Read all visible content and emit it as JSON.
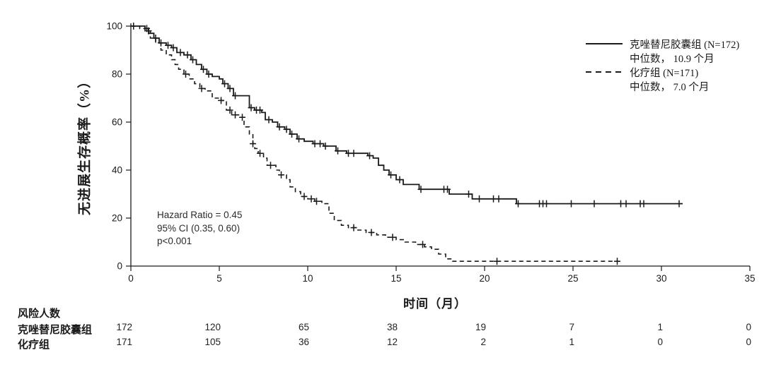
{
  "page": {
    "background": "#ffffff",
    "ink_color": "#1a1a1a"
  },
  "axes": {
    "x_title": "时间（月）",
    "y_title": "无进展生存概率（%）"
  },
  "legend": [
    {
      "label": "克唑替尼胶囊组 (N=172)",
      "median": "中位数， 10.9 个月",
      "style": "solid"
    },
    {
      "label": "化疗组 (N=171)",
      "median": "中位数， 7.0 个月",
      "style": "dashed"
    }
  ],
  "annotation": {
    "line1": "Hazard Ratio = 0.45",
    "line2": "95% CI (0.35, 0.60)",
    "line3": "p<0.001"
  },
  "risk_table": {
    "title": "风险人数",
    "columns_months": [
      0,
      5,
      10,
      15,
      20,
      25,
      30,
      35
    ],
    "rows": [
      {
        "label": "克唑替尼胶囊组",
        "counts": [
          172,
          120,
          65,
          38,
          19,
          7,
          1,
          0
        ]
      },
      {
        "label": "化疗组",
        "counts": [
          171,
          105,
          36,
          12,
          2,
          1,
          0,
          0
        ]
      }
    ]
  },
  "chart_data": {
    "type": "line",
    "subtype": "kaplan-meier-step",
    "title": "",
    "xlabel": "时间（月）",
    "ylabel": "无进展生存概率（%）",
    "xlim": [
      0,
      35
    ],
    "ylim": [
      0,
      100
    ],
    "x_ticks": [
      0,
      5,
      10,
      15,
      20,
      25,
      30,
      35
    ],
    "y_ticks": [
      0,
      20,
      40,
      60,
      80,
      100
    ],
    "grid": false,
    "line_color": "#1a1a1a",
    "annotation_lines": [
      "Hazard Ratio = 0.45",
      "95% CI (0.35, 0.60)",
      "p<0.001"
    ],
    "series": [
      {
        "name": "克唑替尼胶囊组 (N=172)",
        "style": "solid",
        "median_months": 10.9,
        "n": 172,
        "end_month": 31.2,
        "points": [
          [
            0,
            100
          ],
          [
            0.8,
            99
          ],
          [
            1.0,
            97
          ],
          [
            1.3,
            95
          ],
          [
            1.6,
            93
          ],
          [
            2.0,
            92
          ],
          [
            2.3,
            91
          ],
          [
            2.6,
            89
          ],
          [
            3.0,
            88
          ],
          [
            3.4,
            86
          ],
          [
            3.7,
            84
          ],
          [
            4.0,
            82
          ],
          [
            4.3,
            80
          ],
          [
            4.6,
            79
          ],
          [
            5.0,
            78
          ],
          [
            5.2,
            76
          ],
          [
            5.5,
            74
          ],
          [
            5.8,
            71
          ],
          [
            6.7,
            66
          ],
          [
            7.0,
            65
          ],
          [
            7.4,
            64
          ],
          [
            7.6,
            61
          ],
          [
            8.0,
            60
          ],
          [
            8.3,
            58
          ],
          [
            8.7,
            57
          ],
          [
            9.0,
            55
          ],
          [
            9.4,
            53
          ],
          [
            9.8,
            52
          ],
          [
            10.3,
            51
          ],
          [
            10.9,
            50
          ],
          [
            11.6,
            48
          ],
          [
            12.2,
            47
          ],
          [
            13.4,
            46
          ],
          [
            13.7,
            45
          ],
          [
            14.0,
            42
          ],
          [
            14.3,
            40
          ],
          [
            14.6,
            38
          ],
          [
            15.0,
            36
          ],
          [
            15.4,
            34
          ],
          [
            16.3,
            32
          ],
          [
            18.0,
            30
          ],
          [
            19.3,
            28
          ],
          [
            21.8,
            26
          ]
        ],
        "censor_months": [
          0.15,
          0.9,
          1.4,
          1.7,
          2.1,
          2.4,
          2.8,
          3.2,
          3.5,
          4.1,
          4.4,
          5.3,
          5.6,
          5.9,
          6.8,
          7.1,
          7.3,
          7.8,
          8.4,
          8.8,
          9.1,
          9.5,
          10.4,
          10.7,
          11.0,
          11.7,
          12.3,
          12.6,
          13.5,
          14.7,
          15.2,
          16.4,
          17.7,
          17.9,
          19.1,
          19.7,
          20.5,
          20.8,
          21.9,
          23.1,
          23.3,
          23.5,
          24.9,
          26.2,
          27.7,
          28.0,
          28.8,
          29.0,
          31.0
        ]
      },
      {
        "name": "化疗组 (N=171)",
        "style": "dashed",
        "median_months": 7.0,
        "n": 171,
        "end_month": 27.6,
        "points": [
          [
            0,
            100
          ],
          [
            0.5,
            99
          ],
          [
            0.8,
            98
          ],
          [
            1.1,
            95
          ],
          [
            1.4,
            93
          ],
          [
            1.7,
            90
          ],
          [
            2.0,
            88
          ],
          [
            2.3,
            86
          ],
          [
            2.5,
            84
          ],
          [
            2.7,
            82
          ],
          [
            3.0,
            80
          ],
          [
            3.3,
            78
          ],
          [
            3.6,
            76
          ],
          [
            3.9,
            74
          ],
          [
            4.2,
            73
          ],
          [
            4.6,
            70
          ],
          [
            5.1,
            69
          ],
          [
            5.4,
            65
          ],
          [
            5.7,
            63
          ],
          [
            6.1,
            62
          ],
          [
            6.4,
            58
          ],
          [
            6.7,
            55
          ],
          [
            6.9,
            51
          ],
          [
            7.0,
            49
          ],
          [
            7.2,
            47
          ],
          [
            7.5,
            45
          ],
          [
            7.7,
            42
          ],
          [
            8.2,
            40
          ],
          [
            8.4,
            38
          ],
          [
            8.8,
            36
          ],
          [
            9.0,
            33
          ],
          [
            9.3,
            31
          ],
          [
            9.6,
            29
          ],
          [
            10.0,
            28
          ],
          [
            10.4,
            27
          ],
          [
            10.8,
            26
          ],
          [
            11.2,
            22
          ],
          [
            11.5,
            19
          ],
          [
            11.9,
            17
          ],
          [
            12.3,
            16
          ],
          [
            12.8,
            15
          ],
          [
            13.3,
            14
          ],
          [
            13.9,
            13
          ],
          [
            14.4,
            12
          ],
          [
            15.0,
            11
          ],
          [
            15.5,
            10
          ],
          [
            16.1,
            9
          ],
          [
            16.6,
            8
          ],
          [
            17.0,
            7
          ],
          [
            17.4,
            5
          ],
          [
            17.8,
            3
          ],
          [
            18.2,
            2
          ]
        ],
        "censor_months": [
          1.0,
          3.1,
          4.0,
          5.1,
          5.6,
          5.9,
          6.3,
          6.9,
          7.3,
          7.9,
          8.5,
          9.8,
          10.2,
          10.5,
          12.6,
          13.6,
          14.8,
          16.5,
          20.7,
          27.5
        ]
      }
    ],
    "risk_table": {
      "title": "风险人数",
      "columns_months": [
        0,
        5,
        10,
        15,
        20,
        25,
        30,
        35
      ],
      "rows": [
        {
          "label": "克唑替尼胶囊组",
          "counts": [
            172,
            120,
            65,
            38,
            19,
            7,
            1,
            0
          ]
        },
        {
          "label": "化疗组",
          "counts": [
            171,
            105,
            36,
            12,
            2,
            1,
            0,
            0
          ]
        }
      ]
    }
  }
}
